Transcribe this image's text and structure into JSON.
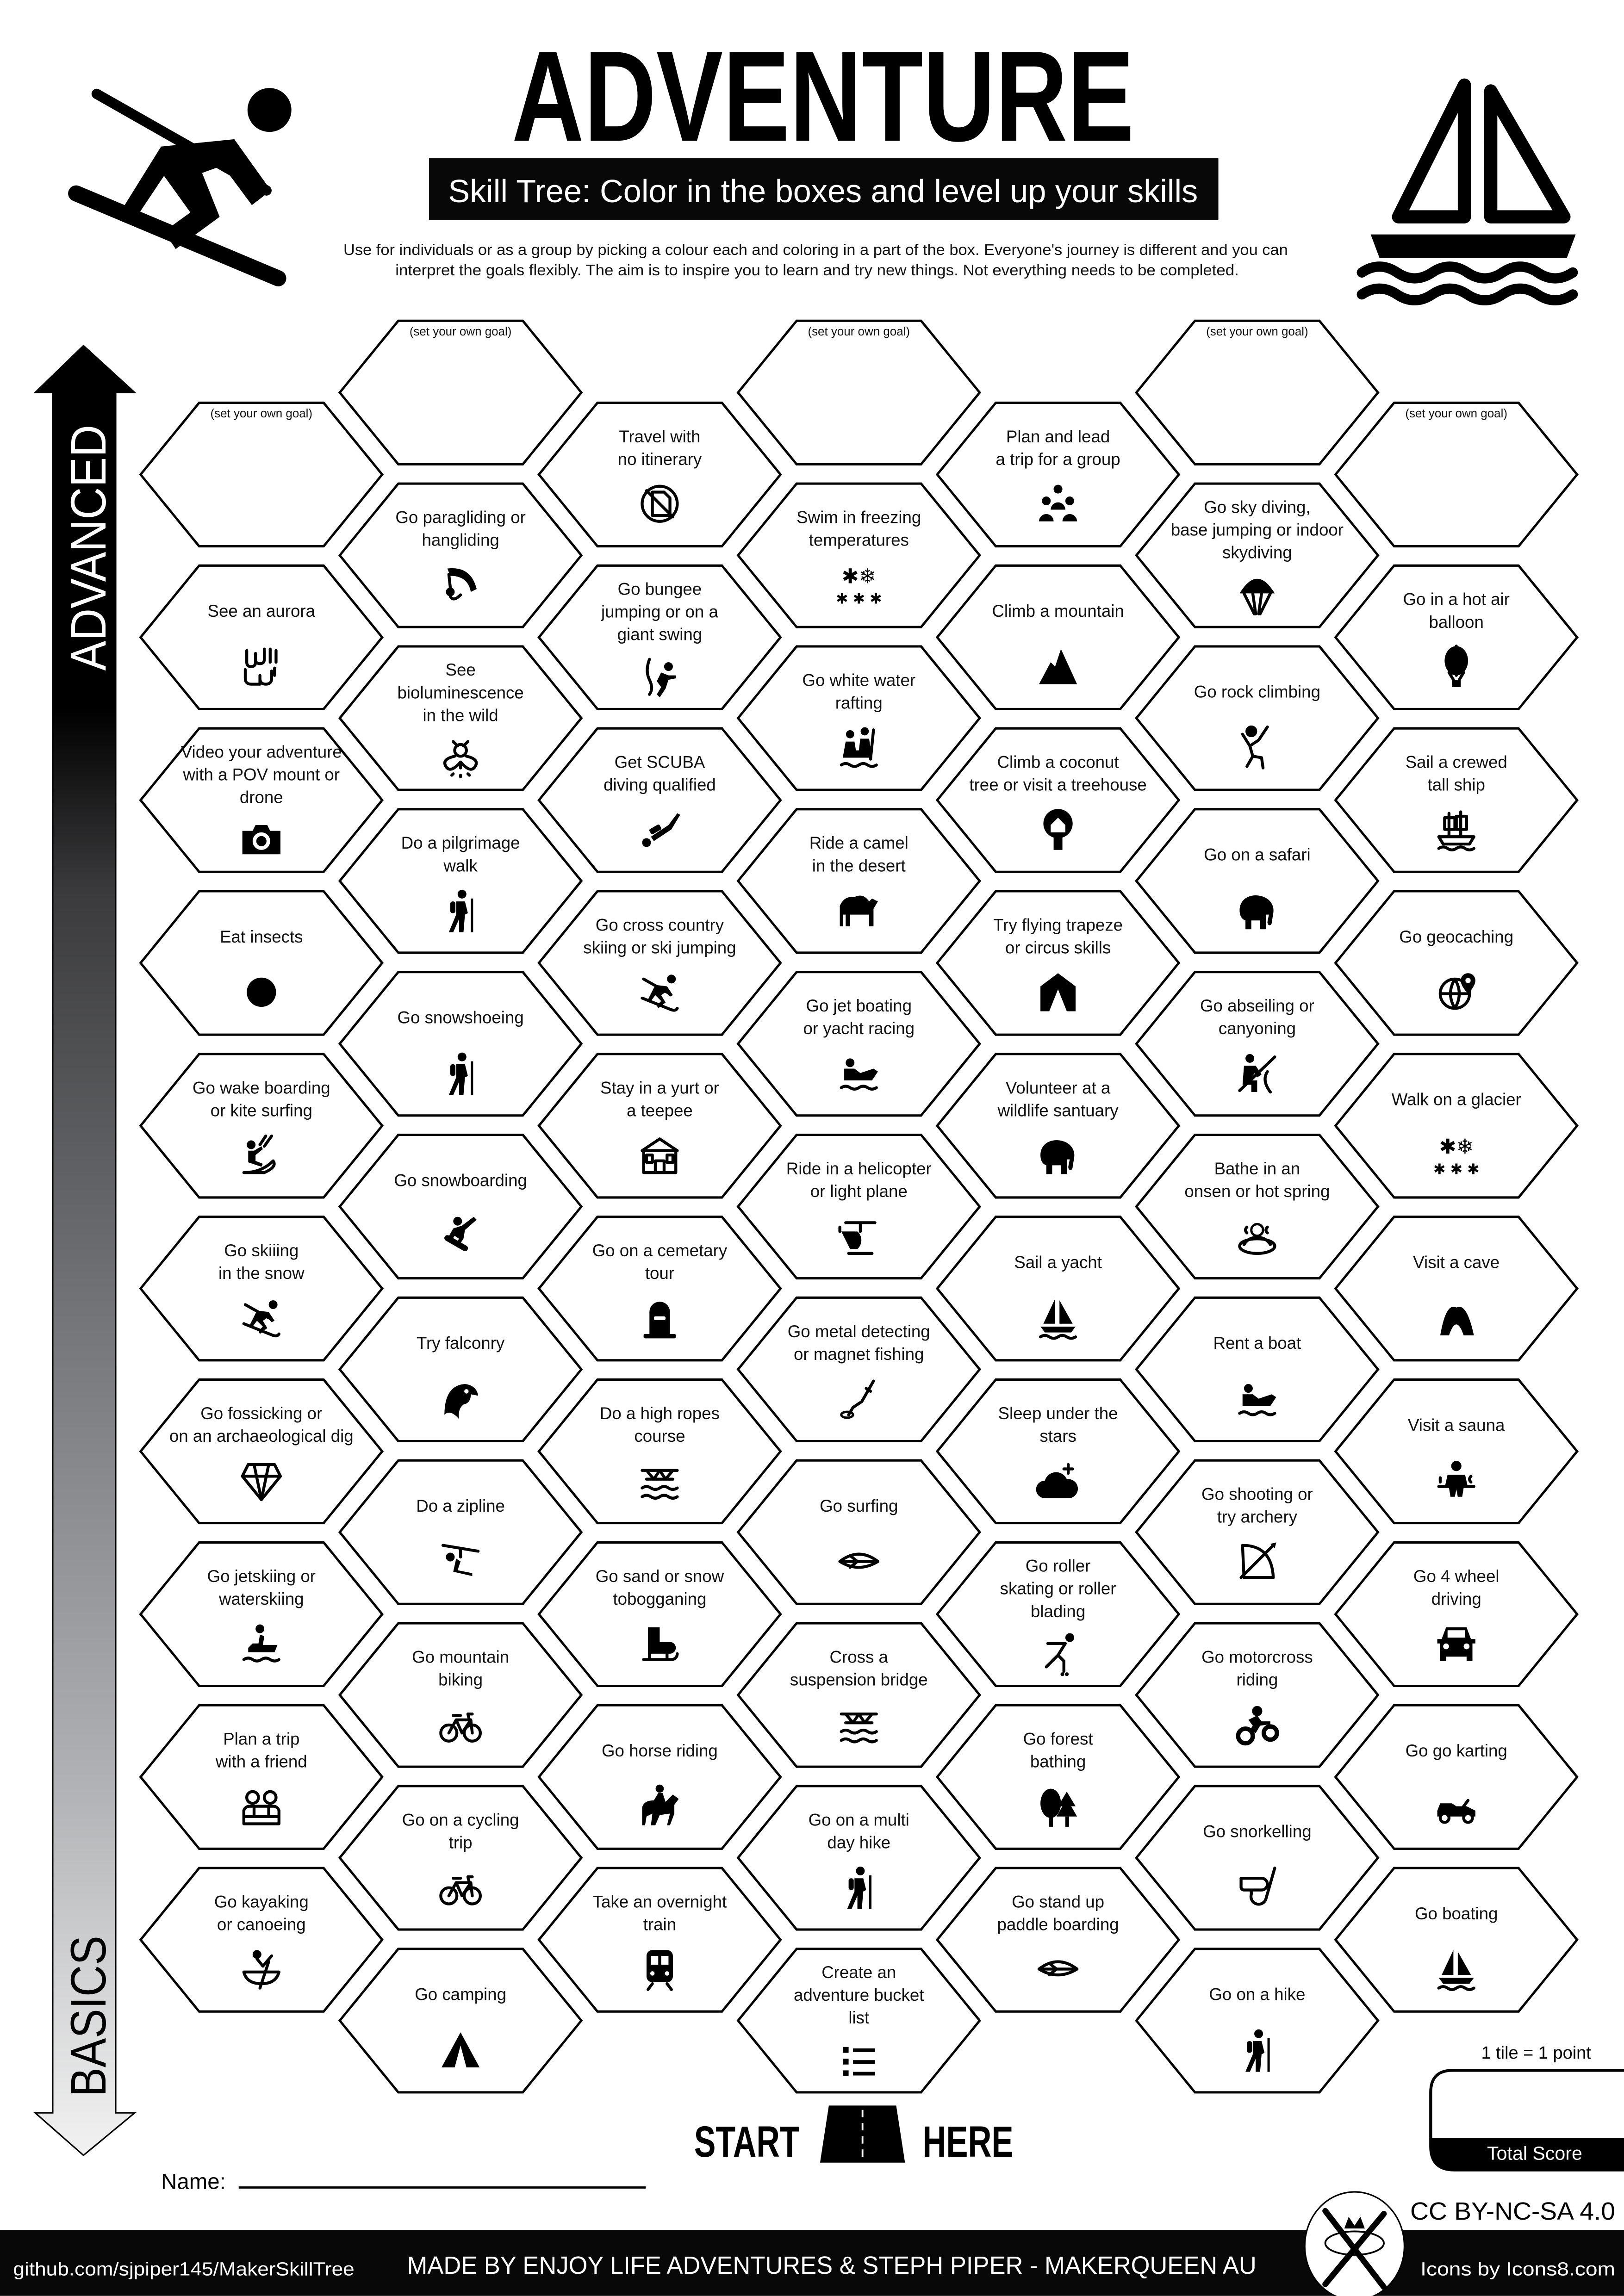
{
  "header": {
    "title": "ADVENTURE",
    "subtitle": "Skill Tree:  Color in the boxes and level up your skills",
    "description": [
      "Use for individuals or as a group by picking a colour each and coloring in a part of the box.  Everyone's journey is different and you can",
      "interpret the goals flexibly.  The aim is to inspire you to learn and try new things. Not everything needs to be completed."
    ],
    "left_icon": "skier-icon",
    "right_icon": "sailboat-icon"
  },
  "side_arrow": {
    "top_label": "ADVANCED",
    "bottom_label": "BASICS"
  },
  "tree": {
    "columns": [
      [
        {
          "label": [
            "(set your own goal)"
          ],
          "icon": "",
          "goal": true
        },
        {
          "label": [
            "See an aurora"
          ],
          "icon": "aurora"
        },
        {
          "label": [
            "Video your adventure",
            "with a POV mount or",
            "drone"
          ],
          "icon": "camera"
        },
        {
          "label": [
            "Eat insects"
          ],
          "icon": "grasshopper"
        },
        {
          "label": [
            "Go wake boarding",
            "or kite surfing"
          ],
          "icon": "kitesurfer"
        },
        {
          "label": [
            "Go skiiing",
            "in the snow"
          ],
          "icon": "skier"
        },
        {
          "label": [
            "Go fossicking or",
            "on an archaeological dig"
          ],
          "icon": "gem"
        },
        {
          "label": [
            "Go jetskiing or",
            "waterskiing"
          ],
          "icon": "jetski"
        },
        {
          "label": [
            "Plan a trip",
            "with a friend"
          ],
          "icon": "friends-laptop"
        },
        {
          "label": [
            "Go kayaking",
            "or canoeing"
          ],
          "icon": "canoe"
        }
      ],
      [
        {
          "label": [
            "(set your own goal)"
          ],
          "icon": "",
          "goal": true
        },
        {
          "label": [
            "Go paragliding or",
            "hangliding"
          ],
          "icon": "paraglider"
        },
        {
          "label": [
            "See",
            "bioluminescence",
            "in the wild"
          ],
          "icon": "firefly"
        },
        {
          "label": [
            "Do a pilgrimage",
            "walk"
          ],
          "icon": "hiker"
        },
        {
          "label": [
            "Go snowshoeing"
          ],
          "icon": "hiker"
        },
        {
          "label": [
            "Go snowboarding"
          ],
          "icon": "snowboarder"
        },
        {
          "label": [
            "Try falconry"
          ],
          "icon": "falcon"
        },
        {
          "label": [
            "Do a zipline"
          ],
          "icon": "zipline"
        },
        {
          "label": [
            "Go mountain",
            "biking"
          ],
          "icon": "bicycle"
        },
        {
          "label": [
            "Go on a cycling",
            "trip"
          ],
          "icon": "bicycle"
        },
        {
          "label": [
            "Go camping"
          ],
          "icon": "tent"
        }
      ],
      [
        {
          "label": [
            "Travel with",
            "no itinerary"
          ],
          "icon": "no-map"
        },
        {
          "label": [
            "Go bungee",
            "jumping or on a",
            "giant swing"
          ],
          "icon": "bungee"
        },
        {
          "label": [
            "Get SCUBA",
            "diving qualified"
          ],
          "icon": "scuba-diver"
        },
        {
          "label": [
            "Go cross country",
            "skiing or ski jumping"
          ],
          "icon": "skier"
        },
        {
          "label": [
            "Stay in a yurt or",
            "a teepee"
          ],
          "icon": "yurt"
        },
        {
          "label": [
            "Go on a cemetary",
            "tour"
          ],
          "icon": "gravestone"
        },
        {
          "label": [
            "Do a high ropes",
            "course"
          ],
          "icon": "rope-bridge"
        },
        {
          "label": [
            "Go sand  or snow",
            "tobogganing"
          ],
          "icon": "sled"
        },
        {
          "label": [
            "Go horse riding"
          ],
          "icon": "horse-rider"
        },
        {
          "label": [
            "Take an overnight",
            "train"
          ],
          "icon": "train"
        }
      ],
      [
        {
          "label": [
            "(set your own goal)"
          ],
          "icon": "",
          "goal": true
        },
        {
          "label": [
            "Swim in freezing",
            "temperatures"
          ],
          "icon": "snowflakes"
        },
        {
          "label": [
            "Go white water",
            "rafting"
          ],
          "icon": "rafting"
        },
        {
          "label": [
            "Ride a camel",
            "in the desert"
          ],
          "icon": "camel"
        },
        {
          "label": [
            "Go jet boating",
            "or yacht racing"
          ],
          "icon": "boat-rider"
        },
        {
          "label": [
            "Ride in a helicopter",
            "or light plane"
          ],
          "icon": "helicopter"
        },
        {
          "label": [
            "Go metal detecting",
            "or magnet fishing"
          ],
          "icon": "metal-detector"
        },
        {
          "label": [
            "Go surfing"
          ],
          "icon": "surfboard"
        },
        {
          "label": [
            "Cross a",
            "suspension bridge"
          ],
          "icon": "rope-bridge"
        },
        {
          "label": [
            "Go on a multi",
            "day hike"
          ],
          "icon": "hiker"
        },
        {
          "label": [
            "Create an",
            "adventure bucket",
            "list"
          ],
          "icon": "list"
        }
      ],
      [
        {
          "label": [
            "Plan and lead",
            "a trip for a group"
          ],
          "icon": "group"
        },
        {
          "label": [
            "Climb a mountain"
          ],
          "icon": "mountain"
        },
        {
          "label": [
            "Climb a coconut",
            "tree or visit a treehouse"
          ],
          "icon": "treehouse"
        },
        {
          "label": [
            "Try flying trapeze",
            "or circus skills"
          ],
          "icon": "circus-tent"
        },
        {
          "label": [
            "Volunteer at a",
            "wildlife santuary"
          ],
          "icon": "elephant"
        },
        {
          "label": [
            "Sail a yacht"
          ],
          "icon": "sailboat"
        },
        {
          "label": [
            "Sleep under the",
            "stars"
          ],
          "icon": "night-cloud"
        },
        {
          "label": [
            "Go roller",
            "skating or roller",
            "blading"
          ],
          "icon": "roller-skater"
        },
        {
          "label": [
            "Go forest",
            "bathing"
          ],
          "icon": "forest"
        },
        {
          "label": [
            "Go stand up",
            "paddle boarding"
          ],
          "icon": "surfboard"
        }
      ],
      [
        {
          "label": [
            "(set your own goal)"
          ],
          "icon": "",
          "goal": true
        },
        {
          "label": [
            "Go sky diving,",
            "base jumping or indoor",
            "skydiving"
          ],
          "icon": "parachute"
        },
        {
          "label": [
            "Go rock climbing"
          ],
          "icon": "climber"
        },
        {
          "label": [
            "Go on a safari"
          ],
          "icon": "elephant"
        },
        {
          "label": [
            "Go abseiling or",
            "canyoning"
          ],
          "icon": "abseiling"
        },
        {
          "label": [
            "Bathe in an",
            "onsen or hot spring"
          ],
          "icon": "hot-spring"
        },
        {
          "label": [
            "Rent a boat"
          ],
          "icon": "boat-rider"
        },
        {
          "label": [
            "Go shooting or",
            "try archery"
          ],
          "icon": "bow-arrow"
        },
        {
          "label": [
            "Go motorcross",
            "riding"
          ],
          "icon": "motocross"
        },
        {
          "label": [
            "Go snorkelling"
          ],
          "icon": "snorkel"
        },
        {
          "label": [
            "Go on a hike"
          ],
          "icon": "hiker"
        }
      ],
      [
        {
          "label": [
            "(set your own goal)"
          ],
          "icon": "",
          "goal": true
        },
        {
          "label": [
            "Go in a hot air",
            "balloon"
          ],
          "icon": "hot-air-balloon"
        },
        {
          "label": [
            "Sail a crewed",
            "tall ship"
          ],
          "icon": "tall-ship"
        },
        {
          "label": [
            "Go geocaching"
          ],
          "icon": "geocaching"
        },
        {
          "label": [
            "Walk on a glacier"
          ],
          "icon": "snowflakes"
        },
        {
          "label": [
            "Visit a cave"
          ],
          "icon": "cave"
        },
        {
          "label": [
            "Visit a sauna"
          ],
          "icon": "sauna"
        },
        {
          "label": [
            "Go 4 wheel",
            "driving"
          ],
          "icon": "car"
        },
        {
          "label": [
            "Go go karting"
          ],
          "icon": "go-kart"
        },
        {
          "label": [
            "Go boating"
          ],
          "icon": "sailboat"
        }
      ]
    ]
  },
  "start": {
    "left": "START",
    "right": "HERE",
    "icon": "road-icon"
  },
  "name_field": {
    "label": "Name:",
    "value": ""
  },
  "score": {
    "note": "1 tile = 1 point",
    "label": "Total Score",
    "value": ""
  },
  "footer": {
    "github": "github.com/sjpiper145/MakerSkillTree",
    "credits": "MADE BY ENJOY LIFE ADVENTURES & STEPH PIPER  -  MAKERQUEEN AU",
    "license": "CC BY-NC-SA 4.0",
    "icons_credit": "Icons by Icons8.com",
    "logo": "tools-crown-logo"
  },
  "colors": {
    "ink": "#000000",
    "paper": "#ffffff",
    "footer_bg": "#080808"
  }
}
